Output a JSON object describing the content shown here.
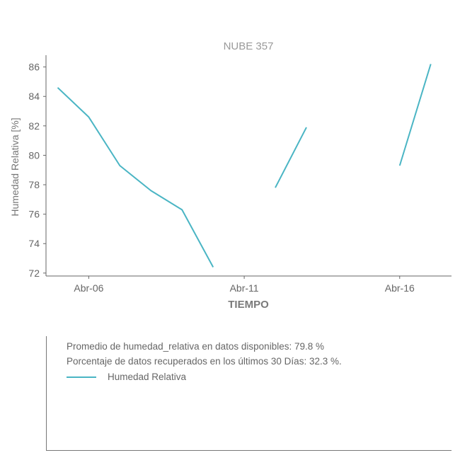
{
  "chart_data": {
    "type": "line",
    "title": "NUBE 357",
    "xlabel": "TIEMPO",
    "ylabel": "Humedad Relativa [%]",
    "x_ticks": [
      "Abr-06",
      "Abr-11",
      "Abr-16"
    ],
    "y_ticks": [
      72,
      74,
      76,
      78,
      80,
      82,
      84,
      86
    ],
    "ylim": [
      71.8,
      86.8
    ],
    "xlim": [
      "2024-04-04 15:00",
      "2024-04-17 16:00"
    ],
    "series": [
      {
        "name": "Humedad Relativa",
        "color": "#4ab5c4",
        "segments": [
          [
            [
              "2024-04-05",
              84.6
            ],
            [
              "2024-04-06",
              82.6
            ],
            [
              "2024-04-07",
              79.3
            ],
            [
              "2024-04-08",
              77.6
            ],
            [
              "2024-04-09",
              76.3
            ],
            [
              "2024-04-10",
              72.4
            ]
          ],
          [
            [
              "2024-04-12",
              77.8
            ],
            [
              "2024-04-13",
              81.9
            ]
          ],
          [
            [
              "2024-04-16",
              79.3
            ],
            [
              "2024-04-17",
              86.2
            ]
          ]
        ]
      }
    ],
    "grid": false,
    "legend_position": "below"
  },
  "info": {
    "average_text": "Promedio de humedad_relativa en datos disponibles: 79.8 %",
    "percentage_text": "Porcentaje de datos recuperados en los últimos 30 Días: 32.3 %.",
    "legend_label": "Humedad Relativa"
  }
}
